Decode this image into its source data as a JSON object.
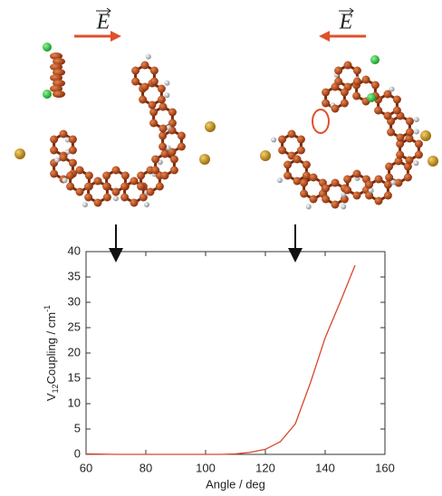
{
  "chart_data": {
    "type": "line",
    "field_labels": [
      "E",
      "E"
    ],
    "x_label": "Angle / deg",
    "y_label": {
      "main": "V",
      "sub": "12",
      "rest": "Coupling / cm",
      "sup": "-1"
    },
    "x": [
      60,
      70,
      80,
      90,
      100,
      105,
      110,
      115,
      120,
      125,
      130,
      135,
      140,
      145,
      150
    ],
    "series": [
      {
        "color": "#d9472b",
        "values": [
          0.1,
          0,
          0,
          0,
          0,
          0,
          0.1,
          0.4,
          1,
          2.5,
          6,
          14,
          23,
          30,
          37.3
        ]
      }
    ],
    "markers": [
      70,
      130
    ],
    "xlim": [
      60,
      160
    ],
    "xticks": [
      60,
      80,
      100,
      120,
      140,
      160
    ],
    "ylim": [
      0,
      40
    ],
    "yticks": [
      0,
      5,
      10,
      15,
      20,
      25,
      30,
      35,
      40
    ],
    "grid": false
  }
}
